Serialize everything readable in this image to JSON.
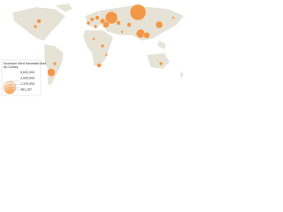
{
  "title": "Sunflower Seed Harvested Area by Country",
  "legend": {
    "values": [
      {
        "value": 5632000,
        "label": "5,632,000"
      },
      {
        "value": 3000000,
        "label": "3,000,000"
      },
      {
        "value": 1376000,
        "label": "1,376,000"
      },
      {
        "value": 481157,
        "label": "481,157"
      }
    ]
  }
}
